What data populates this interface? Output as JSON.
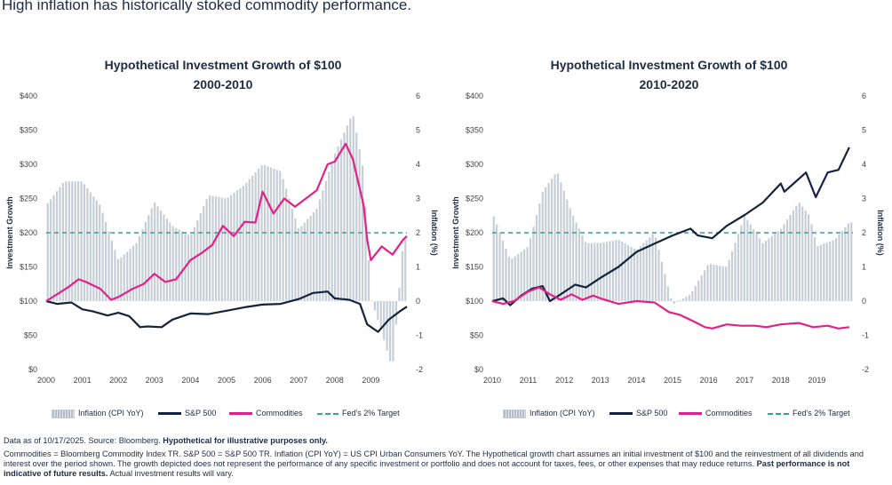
{
  "headline": "High inflation has historically stoked commodity performance.",
  "legend": {
    "inflation": "Inflation (CPI YoY)",
    "sp500": "S&P 500",
    "commodities": "Commodities",
    "fed": "Fed's 2% Target"
  },
  "footnote": {
    "line1_a": "Data as of 10/17/2025. Source: Bloomberg. ",
    "line1_b": "Hypothetical for illustrative purposes only.",
    "line2_a": "Commodities = Bloomberg Commodity Index TR. S&P 500 = S&P 500 TR.  Inflation (CPI YoY) = US CPI Urban Consumers YoY. The Hypothetical growth chart assumes an initial investment of $100 and the reinvestment of all dividends and interest over the period shown. The growth depicted does not represent the performance of any specific investment or portfolio and does not account for taxes, fees, or other expenses that may reduce returns. ",
    "line2_b": "Past performance is not indicative of future results.",
    "line2_c": " Actual investment results will vary."
  },
  "colors": {
    "sp500": "#14233d",
    "commodities": "#e0218a",
    "inflation_bar": "#b3bec8",
    "fed": "#2fa592"
  },
  "chart_data": [
    {
      "type": "line",
      "title": "Hypothetical Investment Growth of $100",
      "subtitle": "2000-2010",
      "ylabel": "Investment Growth",
      "y2label": "Inflation (%)",
      "ylim": [
        0,
        400
      ],
      "y2lim": [
        -2,
        6
      ],
      "yticks": [
        "$0",
        "$50",
        "$100",
        "$150",
        "$200",
        "$250",
        "$300",
        "$350",
        "$400"
      ],
      "y2ticks": [
        "-2",
        "-1",
        "0",
        "1",
        "2",
        "3",
        "4",
        "5",
        "6"
      ],
      "x_range": [
        2000,
        2010
      ],
      "xticks": [
        "2000",
        "2001",
        "2002",
        "2003",
        "2004",
        "2005",
        "2006",
        "2007",
        "2008",
        "2009"
      ],
      "fed_target": 2,
      "series": [
        {
          "name": "Inflation (CPI YoY)",
          "kind": "bar",
          "axis": "y2",
          "x": [
            2000.0,
            2000.5,
            2001.0,
            2001.5,
            2002.0,
            2002.5,
            2003.0,
            2003.5,
            2004.0,
            2004.5,
            2005.0,
            2005.5,
            2006.0,
            2006.5,
            2007.0,
            2007.5,
            2008.0,
            2008.5,
            2008.8,
            2009.0,
            2009.3,
            2009.6,
            2009.9
          ],
          "y": [
            2.8,
            3.5,
            3.5,
            2.8,
            1.2,
            1.7,
            2.9,
            2.2,
            1.9,
            3.1,
            3.0,
            3.4,
            4.0,
            3.8,
            2.1,
            2.7,
            4.3,
            5.5,
            3.8,
            0.1,
            -0.9,
            -2.0,
            1.8
          ]
        },
        {
          "name": "S&P 500",
          "kind": "line",
          "axis": "y",
          "x": [
            2000.0,
            2000.3,
            2000.7,
            2001.0,
            2001.3,
            2001.7,
            2002.0,
            2002.3,
            2002.6,
            2002.8,
            2003.2,
            2003.5,
            2004.0,
            2004.5,
            2005.0,
            2005.5,
            2006.0,
            2006.5,
            2007.0,
            2007.4,
            2007.8,
            2008.0,
            2008.4,
            2008.7,
            2008.9,
            2009.2,
            2009.5,
            2009.8,
            2010.0
          ],
          "y": [
            100,
            96,
            98,
            88,
            85,
            79,
            83,
            78,
            62,
            63,
            62,
            73,
            82,
            81,
            86,
            91,
            95,
            96,
            103,
            112,
            114,
            104,
            102,
            96,
            66,
            55,
            73,
            85,
            92
          ]
        },
        {
          "name": "Commodities",
          "kind": "line",
          "axis": "y",
          "x": [
            2000.0,
            2000.3,
            2000.6,
            2000.9,
            2001.1,
            2001.5,
            2001.8,
            2002.0,
            2002.4,
            2002.7,
            2003.0,
            2003.3,
            2003.6,
            2004.0,
            2004.3,
            2004.6,
            2004.9,
            2005.2,
            2005.5,
            2005.8,
            2006.0,
            2006.3,
            2006.6,
            2006.9,
            2007.2,
            2007.5,
            2007.8,
            2008.0,
            2008.3,
            2008.5,
            2008.6,
            2008.8,
            2008.9,
            2009.0,
            2009.3,
            2009.6,
            2009.9,
            2010.0
          ],
          "y": [
            100,
            110,
            120,
            132,
            128,
            118,
            102,
            106,
            118,
            125,
            140,
            128,
            132,
            160,
            170,
            182,
            210,
            195,
            216,
            215,
            260,
            228,
            250,
            238,
            250,
            262,
            300,
            304,
            330,
            308,
            285,
            240,
            190,
            160,
            180,
            168,
            190,
            195
          ]
        }
      ]
    },
    {
      "type": "line",
      "title": "Hypothetical Investment Growth of $100",
      "subtitle": "2010-2020",
      "ylabel": "Investment Growth",
      "y2label": "Inflation (%)",
      "ylim": [
        0,
        400
      ],
      "y2lim": [
        -2,
        6
      ],
      "yticks": [
        "$0",
        "$50",
        "$100",
        "$150",
        "$200",
        "$250",
        "$300",
        "$350",
        "$400"
      ],
      "y2ticks": [
        "-2",
        "-1",
        "0",
        "1",
        "2",
        "3",
        "4",
        "5",
        "6"
      ],
      "x_range": [
        2010,
        2020
      ],
      "xticks": [
        "2010",
        "2011",
        "2012",
        "2013",
        "2014",
        "2015",
        "2016",
        "2017",
        "2018",
        "2019"
      ],
      "fed_target": 2,
      "series": [
        {
          "name": "Inflation (CPI YoY)",
          "kind": "bar",
          "axis": "y2",
          "x": [
            2010.0,
            2010.5,
            2011.0,
            2011.4,
            2011.8,
            2012.2,
            2012.6,
            2013.0,
            2013.5,
            2014.0,
            2014.5,
            2015.0,
            2015.5,
            2016.0,
            2016.5,
            2017.0,
            2017.5,
            2018.0,
            2018.5,
            2018.8,
            2019.0,
            2019.5,
            2019.9
          ],
          "y": [
            2.6,
            1.2,
            1.6,
            3.2,
            3.8,
            2.6,
            1.7,
            1.7,
            1.8,
            1.5,
            2.0,
            -0.1,
            0.2,
            1.1,
            1.0,
            2.5,
            1.7,
            2.1,
            2.9,
            2.5,
            1.6,
            1.8,
            2.3
          ]
        },
        {
          "name": "S&P 500",
          "kind": "line",
          "axis": "y",
          "x": [
            2010.0,
            2010.3,
            2010.5,
            2010.8,
            2011.1,
            2011.4,
            2011.6,
            2011.9,
            2012.3,
            2012.6,
            2013.0,
            2013.5,
            2014.0,
            2014.5,
            2015.0,
            2015.5,
            2015.7,
            2016.1,
            2016.5,
            2017.0,
            2017.5,
            2018.0,
            2018.1,
            2018.7,
            2018.97,
            2019.3,
            2019.6,
            2019.9
          ],
          "y": [
            100,
            104,
            94,
            108,
            118,
            122,
            100,
            110,
            124,
            120,
            134,
            150,
            172,
            184,
            196,
            206,
            196,
            192,
            210,
            226,
            244,
            272,
            260,
            288,
            252,
            288,
            292,
            325
          ]
        },
        {
          "name": "Commodities",
          "kind": "line",
          "axis": "y",
          "x": [
            2010.0,
            2010.3,
            2010.6,
            2011.0,
            2011.3,
            2011.6,
            2011.9,
            2012.2,
            2012.5,
            2012.8,
            2013.0,
            2013.5,
            2014.0,
            2014.5,
            2014.9,
            2015.2,
            2015.6,
            2015.9,
            2016.1,
            2016.5,
            2016.9,
            2017.3,
            2017.6,
            2018.0,
            2018.5,
            2018.9,
            2019.3,
            2019.6,
            2019.9
          ],
          "y": [
            100,
            96,
            100,
            114,
            120,
            110,
            102,
            110,
            102,
            108,
            104,
            96,
            100,
            98,
            84,
            80,
            70,
            62,
            60,
            66,
            64,
            64,
            62,
            66,
            68,
            62,
            64,
            60,
            62
          ]
        }
      ]
    }
  ]
}
